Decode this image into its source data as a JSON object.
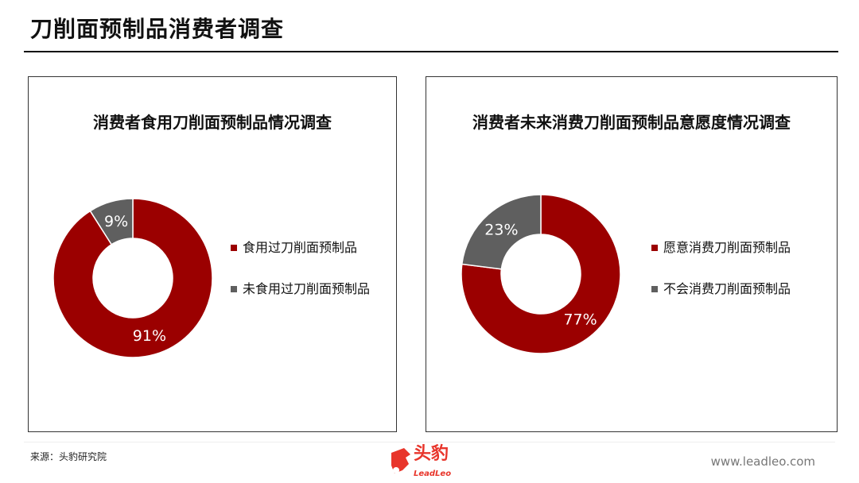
{
  "page": {
    "title": "刀削面预制品消费者调查",
    "source": "来源：头豹研究院",
    "website": "www.leadleo.com",
    "logo_cn": "头豹",
    "logo_en": "LeadLeo"
  },
  "chart_data": [
    {
      "type": "pie",
      "variant": "donut",
      "title": "消费者食用刀削面预制品情况调查",
      "categories": [
        "食用过刀削面预制品",
        "未食用过刀削面预制品"
      ],
      "values": [
        91,
        9
      ],
      "labels": [
        "91%",
        "9%"
      ],
      "colors": [
        "#9b0000",
        "#5f5f5f"
      ],
      "legend": "right"
    },
    {
      "type": "pie",
      "variant": "donut",
      "title": "消费者未来消费刀削面预制品意愿度情况调查",
      "categories": [
        "愿意消费刀削面预制品",
        "不会消费刀削面预制品"
      ],
      "values": [
        77,
        23
      ],
      "labels": [
        "77%",
        "23%"
      ],
      "colors": [
        "#9b0000",
        "#5f5f5f"
      ],
      "legend": "right"
    }
  ]
}
